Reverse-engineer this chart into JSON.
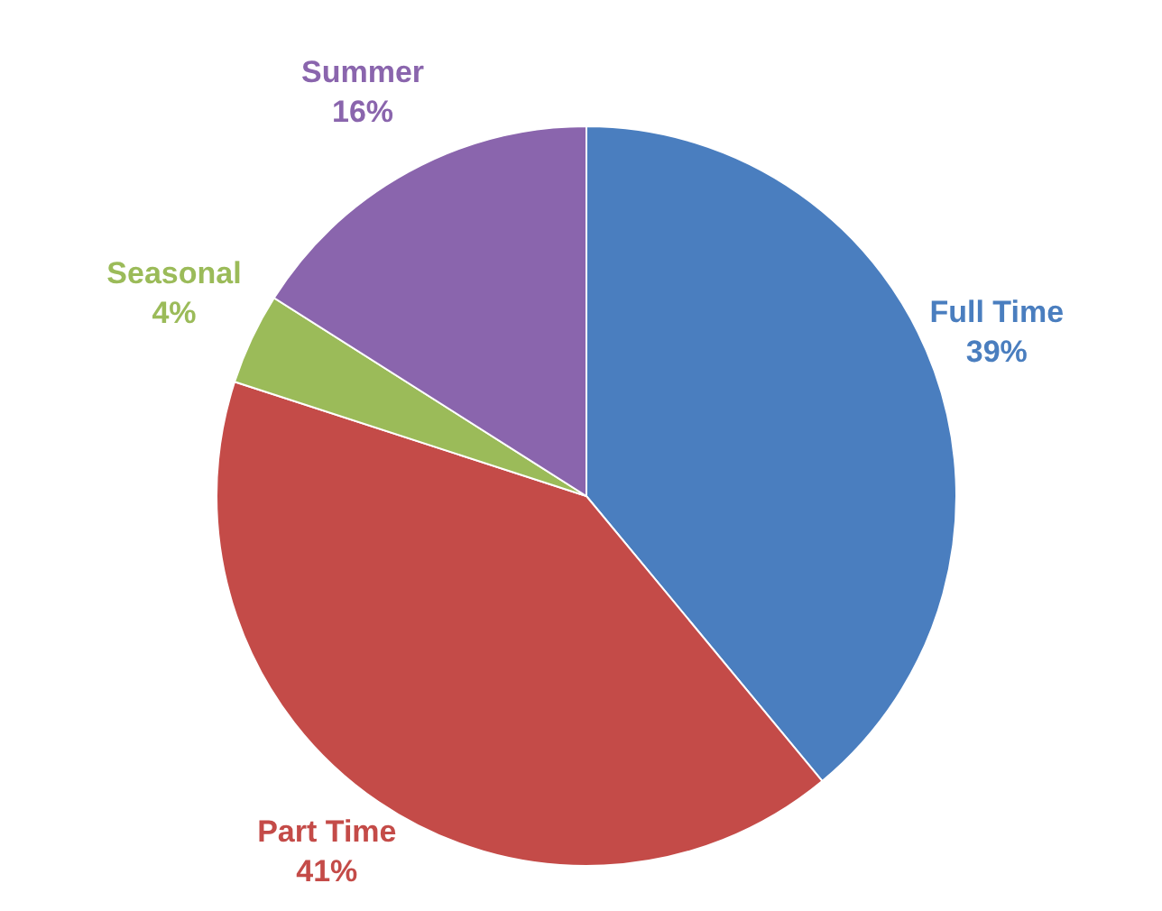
{
  "chart_data": {
    "type": "pie",
    "categories": [
      "Full Time",
      "Part Time",
      "Seasonal",
      "Summer"
    ],
    "values": [
      39,
      41,
      4,
      16
    ],
    "value_labels": [
      "39%",
      "41%",
      "4%",
      "16%"
    ],
    "colors": [
      "#4a7ebf",
      "#c44b48",
      "#9bbb59",
      "#8a65ad"
    ],
    "legend": false
  }
}
